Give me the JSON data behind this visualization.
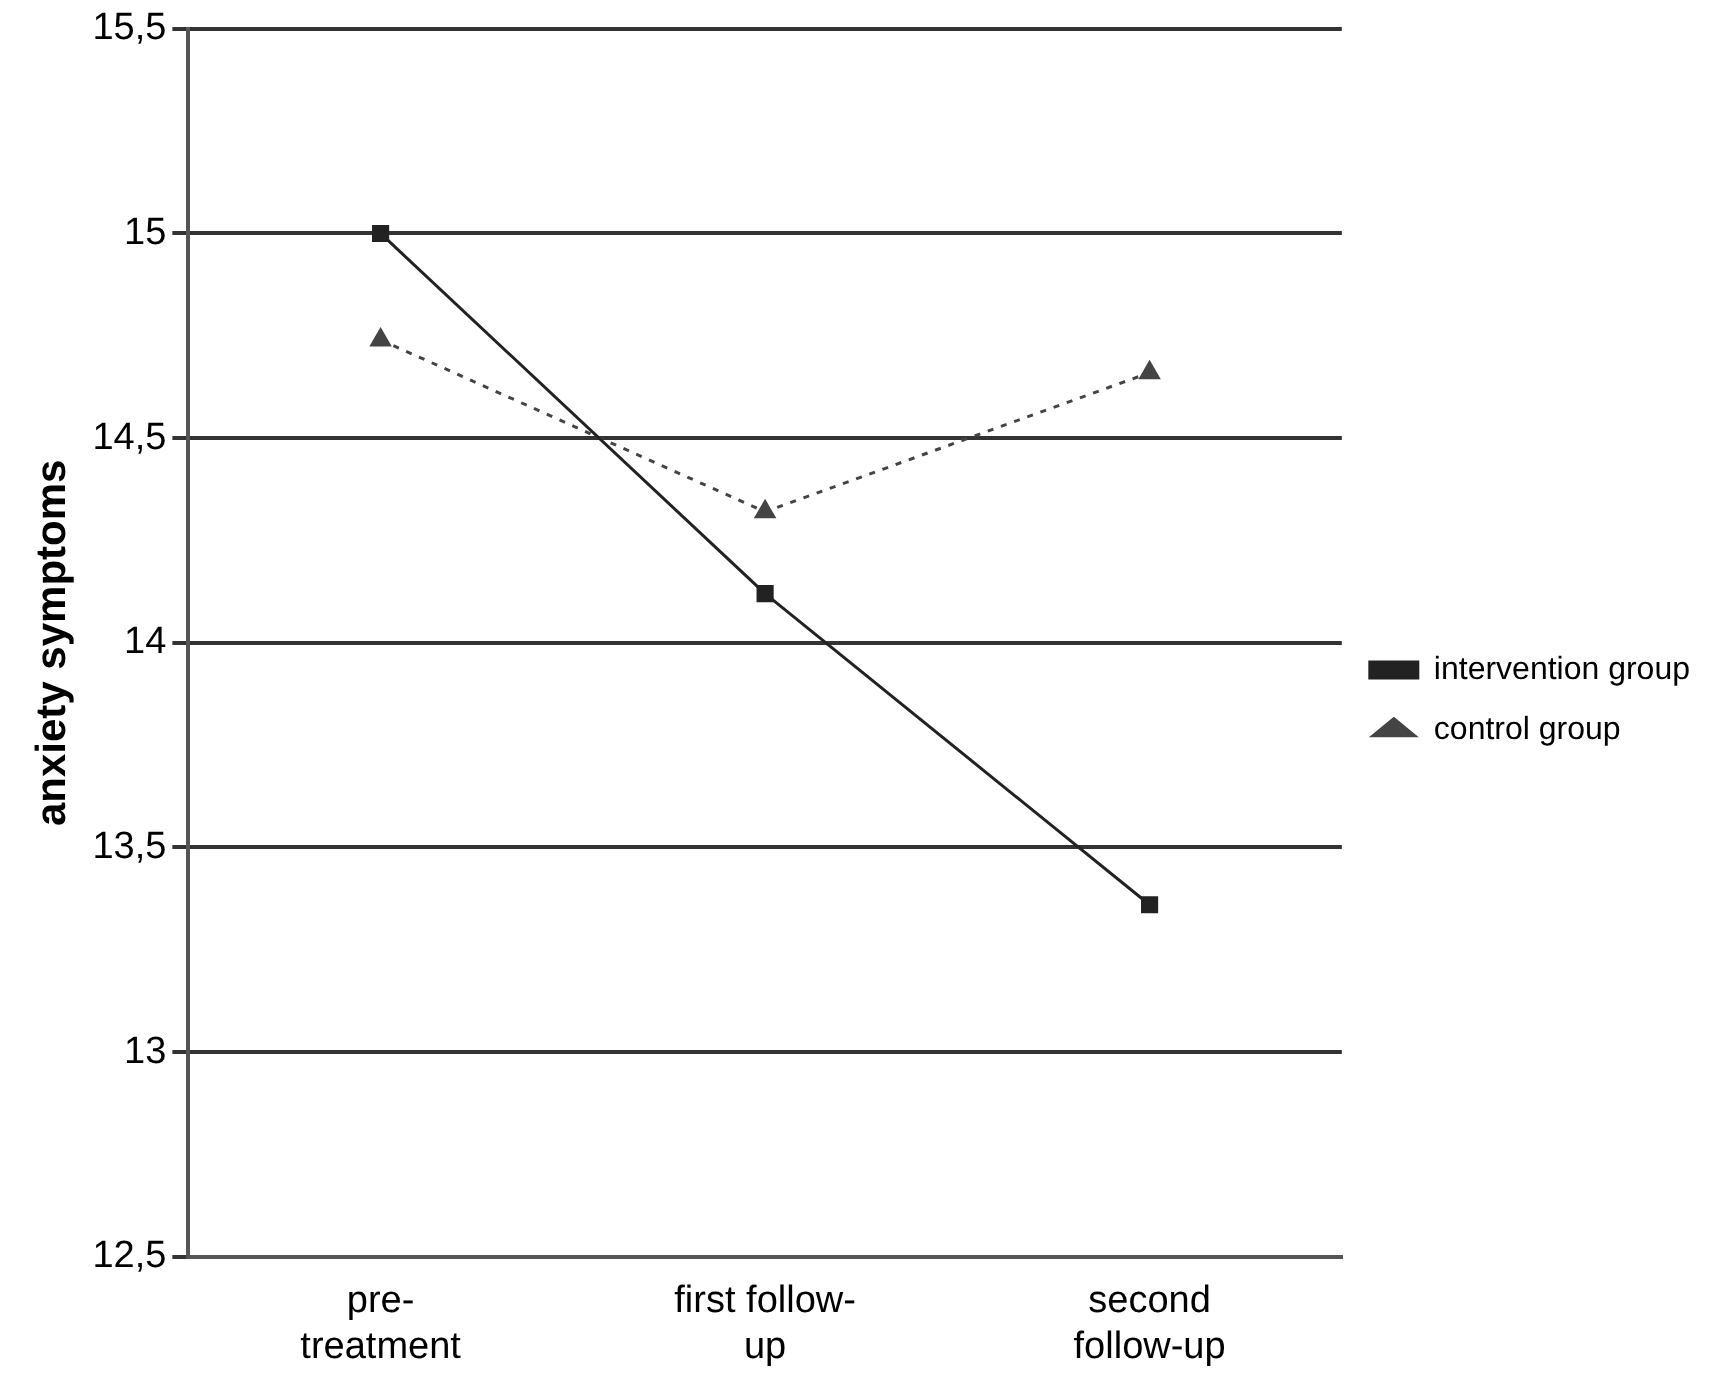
{
  "chart_data": {
    "type": "line",
    "ylabel": "anxiety symptoms",
    "categories": [
      "pre-\ntreatment",
      "first follow-\nup",
      "second\nfollow-up"
    ],
    "series": [
      {
        "name": "intervention group",
        "color": "#222222",
        "values": [
          15.0,
          14.12,
          13.36
        ],
        "marker": "square",
        "line_style": "solid"
      },
      {
        "name": "control group",
        "color": "#444444",
        "values": [
          14.74,
          14.32,
          14.66
        ],
        "marker": "triangle",
        "line_style": "dotted"
      }
    ],
    "ylim": [
      12.5,
      15.5
    ],
    "yticks": [
      {
        "value": 12.5,
        "label": "12,5"
      },
      {
        "value": 13,
        "label": "13"
      },
      {
        "value": 13.5,
        "label": "13,5"
      },
      {
        "value": 14,
        "label": "14"
      },
      {
        "value": 14.5,
        "label": "14,5"
      },
      {
        "value": 15,
        "label": "15"
      },
      {
        "value": 15.5,
        "label": "15,5"
      }
    ],
    "grid": "y",
    "legend": "right"
  }
}
